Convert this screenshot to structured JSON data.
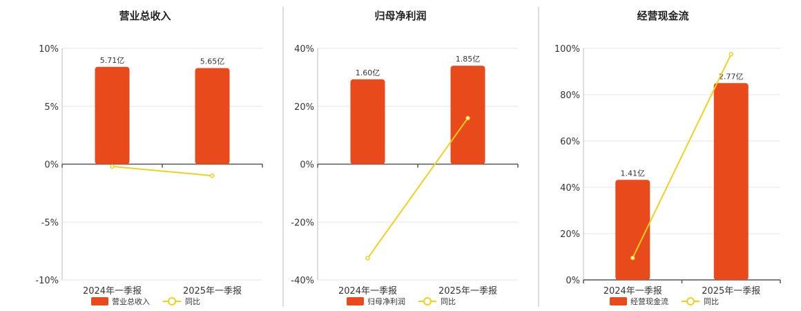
{
  "colors": {
    "bar": "#e84a1b",
    "line": "#f2d01b"
  },
  "chart_data": [
    {
      "type": "bar",
      "title": "营业总收入",
      "categories": [
        "2024年一季报",
        "2025年一季报"
      ],
      "bar_values": [
        8.4,
        8.3
      ],
      "bar_labels": [
        "5.71亿",
        "5.65亿"
      ],
      "line_name": "同比",
      "line_values": [
        -0.2,
        -1.0
      ],
      "ylim": [
        -10,
        10
      ],
      "yticks": [
        10,
        5,
        0,
        -5,
        -10
      ],
      "ytick_labels": [
        "10%",
        "5%",
        "0%",
        "-5%",
        "-10%"
      ],
      "legend": [
        "营业总收入",
        "同比"
      ]
    },
    {
      "type": "bar",
      "title": "归母净利润",
      "categories": [
        "2024年一季报",
        "2025年一季报"
      ],
      "bar_values": [
        29.3,
        34.0
      ],
      "bar_labels": [
        "1.60亿",
        "1.85亿"
      ],
      "line_name": "同比",
      "line_values": [
        -32.5,
        15.9
      ],
      "ylim": [
        -40,
        40
      ],
      "yticks": [
        40,
        20,
        0,
        -20,
        -40
      ],
      "ytick_labels": [
        "40%",
        "20%",
        "0%",
        "-20%",
        "-40%"
      ],
      "legend": [
        "归母净利润",
        "同比"
      ]
    },
    {
      "type": "bar",
      "title": "经营现金流",
      "categories": [
        "2024年一季报",
        "2025年一季报"
      ],
      "bar_values": [
        43.2,
        85.0
      ],
      "bar_labels": [
        "1.41亿",
        "2.77亿"
      ],
      "line_name": "同比",
      "line_values": [
        9.5,
        97.5
      ],
      "ylim": [
        0,
        100
      ],
      "yticks": [
        100,
        80,
        60,
        40,
        20,
        0
      ],
      "ytick_labels": [
        "100%",
        "80%",
        "60%",
        "40%",
        "20%",
        "0%"
      ],
      "legend": [
        "经营现金流",
        "同比"
      ]
    }
  ]
}
